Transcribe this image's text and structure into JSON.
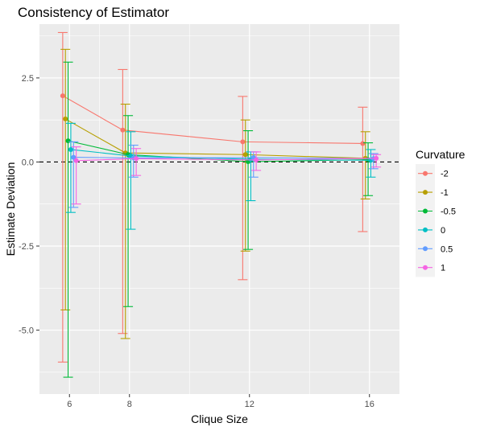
{
  "chart_data": {
    "type": "line",
    "title": "Consistency of Estimator",
    "xlabel": "Clique Size",
    "ylabel": "Estimate Deviation",
    "xlim": [
      5.0,
      17.0
    ],
    "ylim": [
      -6.9,
      4.1
    ],
    "x_ticks": [
      6,
      8,
      12,
      16
    ],
    "y_ticks": [
      -5.0,
      -2.5,
      0.0,
      2.5
    ],
    "y_tick_labels": [
      "-5.0",
      "-2.5",
      "0.0",
      "2.5"
    ],
    "reference_line": {
      "y": 0,
      "style": "dashed",
      "color": "#000000"
    },
    "grid": true,
    "panel_background": "#ebebeb",
    "legend": {
      "title": "Curvature",
      "position": "right"
    },
    "x": [
      6,
      8,
      12,
      16
    ],
    "series": [
      {
        "name": "-2",
        "color": "#F8766D",
        "values": [
          1.97,
          0.95,
          0.6,
          0.55
        ],
        "lower": [
          -5.95,
          -5.1,
          -3.5,
          -2.07
        ],
        "upper": [
          3.85,
          2.75,
          1.95,
          1.63
        ]
      },
      {
        "name": "-1",
        "color": "#B79F00",
        "values": [
          1.28,
          0.27,
          0.22,
          0.11
        ],
        "lower": [
          -4.4,
          -5.25,
          -2.65,
          -1.1
        ],
        "upper": [
          3.35,
          1.72,
          1.25,
          0.9
        ]
      },
      {
        "name": "-0.5",
        "color": "#00BA38",
        "values": [
          0.63,
          0.22,
          0.01,
          0.07
        ],
        "lower": [
          -6.4,
          -4.3,
          -2.6,
          -1.0
        ],
        "upper": [
          2.97,
          1.38,
          0.93,
          0.57
        ]
      },
      {
        "name": "0",
        "color": "#00BFC4",
        "values": [
          0.37,
          0.18,
          0.08,
          0.05
        ],
        "lower": [
          -1.5,
          -2.0,
          -1.15,
          -0.45
        ],
        "upper": [
          1.15,
          0.9,
          0.3,
          0.37
        ]
      },
      {
        "name": "0.5",
        "color": "#619CFF",
        "values": [
          0.14,
          0.12,
          0.13,
          0.1
        ],
        "lower": [
          -1.35,
          -0.45,
          -0.45,
          -0.2
        ],
        "upper": [
          0.6,
          0.5,
          0.3,
          0.25
        ]
      },
      {
        "name": "1",
        "color": "#F564E3",
        "values": [
          0.04,
          0.1,
          0.06,
          0.11
        ],
        "lower": [
          -1.25,
          -0.4,
          -0.25,
          -0.15
        ],
        "upper": [
          0.45,
          0.4,
          0.3,
          0.22
        ]
      }
    ]
  }
}
